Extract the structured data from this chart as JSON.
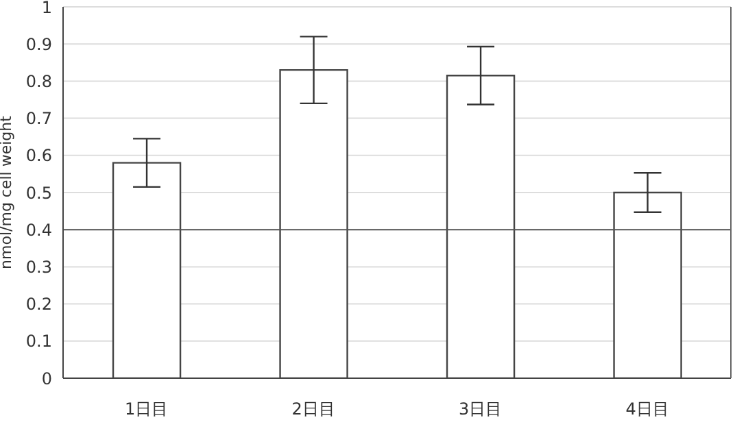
{
  "chart_data": {
    "type": "bar",
    "categories": [
      "1日目",
      "2日目",
      "3日目",
      "4日目"
    ],
    "values": [
      0.58,
      0.83,
      0.815,
      0.5
    ],
    "errors": [
      0.065,
      0.09,
      0.078,
      0.053
    ],
    "color": "#ffffff",
    "ylabel": "nmol/mg cell weight",
    "ylim": [
      0,
      1
    ],
    "yticks": [
      0,
      0.1,
      0.2,
      0.3,
      0.4,
      0.5,
      0.6,
      0.7,
      0.8,
      0.9,
      1
    ],
    "ref_lines": [
      {
        "axis": "y",
        "value": 0.4,
        "label": null,
        "color": "#555555"
      }
    ],
    "grid": "y"
  }
}
